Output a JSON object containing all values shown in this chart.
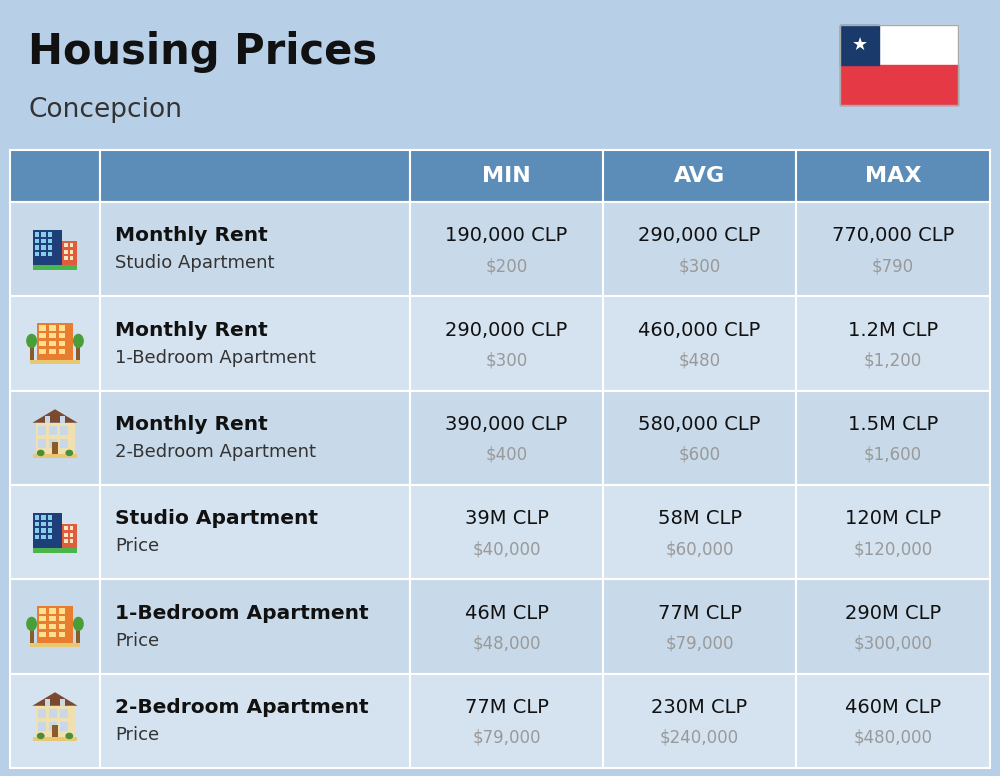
{
  "title": "Housing Prices",
  "subtitle": "Concepcion",
  "background_color": "#b8cfe8",
  "header_bg_color": "#5b8db8",
  "header_text_color": "#ffffff",
  "row_bg_colors": [
    "#c8daea",
    "#d5e3f0"
  ],
  "col_headers": [
    "MIN",
    "AVG",
    "MAX"
  ],
  "rows": [
    {
      "label_bold": "Monthly Rent",
      "label_sub": "Studio Apartment",
      "icon": "blue_office",
      "min_clp": "190,000 CLP",
      "min_usd": "$200",
      "avg_clp": "290,000 CLP",
      "avg_usd": "$300",
      "max_clp": "770,000 CLP",
      "max_usd": "$790"
    },
    {
      "label_bold": "Monthly Rent",
      "label_sub": "1-Bedroom Apartment",
      "icon": "orange_apt",
      "min_clp": "290,000 CLP",
      "min_usd": "$300",
      "avg_clp": "460,000 CLP",
      "avg_usd": "$480",
      "max_clp": "1.2M CLP",
      "max_usd": "$1,200"
    },
    {
      "label_bold": "Monthly Rent",
      "label_sub": "2-Bedroom Apartment",
      "icon": "beige_house",
      "min_clp": "390,000 CLP",
      "min_usd": "$400",
      "avg_clp": "580,000 CLP",
      "avg_usd": "$600",
      "max_clp": "1.5M CLP",
      "max_usd": "$1,600"
    },
    {
      "label_bold": "Studio Apartment",
      "label_sub": "Price",
      "icon": "blue_office",
      "min_clp": "39M CLP",
      "min_usd": "$40,000",
      "avg_clp": "58M CLP",
      "avg_usd": "$60,000",
      "max_clp": "120M CLP",
      "max_usd": "$120,000"
    },
    {
      "label_bold": "1-Bedroom Apartment",
      "label_sub": "Price",
      "icon": "orange_apt",
      "min_clp": "46M CLP",
      "min_usd": "$48,000",
      "avg_clp": "77M CLP",
      "avg_usd": "$79,000",
      "max_clp": "290M CLP",
      "max_usd": "$300,000"
    },
    {
      "label_bold": "2-Bedroom Apartment",
      "label_sub": "Price",
      "icon": "beige_house",
      "min_clp": "77M CLP",
      "min_usd": "$79,000",
      "avg_clp": "230M CLP",
      "avg_usd": "$240,000",
      "max_clp": "460M CLP",
      "max_usd": "$480,000"
    }
  ],
  "flag_colors": {
    "blue": "#1a3a6b",
    "red": "#e63946",
    "white": "#ffffff"
  }
}
